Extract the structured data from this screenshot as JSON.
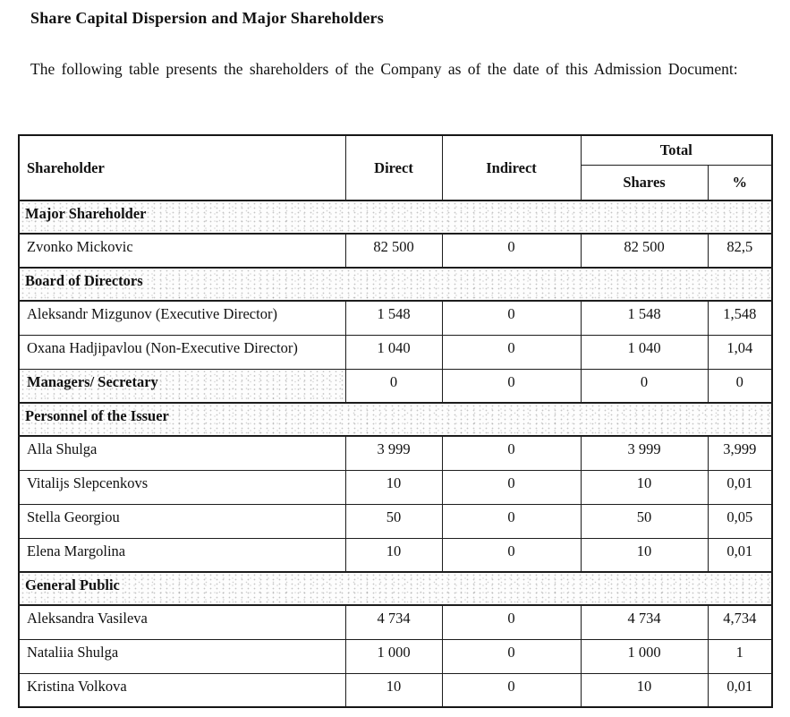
{
  "page": {
    "title": "Share Capital Dispersion and Major Shareholders",
    "intro": "The following table presents the shareholders of the Company as of the date of this Admission Document:"
  },
  "table": {
    "headers": {
      "shareholder": "Shareholder",
      "direct": "Direct",
      "indirect": "Indirect",
      "total": "Total",
      "shares": "Shares",
      "percent": "%"
    },
    "rows": [
      {
        "type": "section",
        "label": "Major Shareholder"
      },
      {
        "type": "data",
        "name": "Zvonko Mickovic",
        "direct": "82 500",
        "indirect": "0",
        "shares": "82 500",
        "percent": "82,5"
      },
      {
        "type": "section",
        "label": "Board of Directors"
      },
      {
        "type": "data",
        "name": "Aleksandr Mizgunov (Executive Director)",
        "direct": "1 548",
        "indirect": "0",
        "shares": "1 548",
        "percent": "1,548"
      },
      {
        "type": "data",
        "name": "Oxana Hadjipavlou (Non-Executive Director)",
        "direct": "1 040",
        "indirect": "0",
        "shares": "1 040",
        "percent": "1,04"
      },
      {
        "type": "data",
        "name": "Managers/ Secretary",
        "bold": true,
        "speckled": true,
        "direct": "0",
        "indirect": "0",
        "shares": "0",
        "percent": "0"
      },
      {
        "type": "section",
        "label": "Personnel of the Issuer"
      },
      {
        "type": "data",
        "name": "Alla Shulga",
        "direct": "3 999",
        "indirect": "0",
        "shares": "3 999",
        "percent": "3,999"
      },
      {
        "type": "data",
        "name": "Vitalijs Slepcenkovs",
        "direct": "10",
        "indirect": "0",
        "shares": "10",
        "percent": "0,01"
      },
      {
        "type": "data",
        "name": "Stella Georgiou",
        "direct": "50",
        "indirect": "0",
        "shares": "50",
        "percent": "0,05"
      },
      {
        "type": "data",
        "name": "Elena Margolina",
        "direct": "10",
        "indirect": "0",
        "shares": "10",
        "percent": "0,01"
      },
      {
        "type": "section",
        "label": "General Public"
      },
      {
        "type": "data",
        "name": "Aleksandra Vasileva",
        "direct": "4 734",
        "indirect": "0",
        "shares": "4 734",
        "percent": "4,734"
      },
      {
        "type": "data",
        "name": "Nataliia Shulga",
        "direct": "1 000",
        "indirect": "0",
        "shares": "1 000",
        "percent": "1"
      },
      {
        "type": "data",
        "name": "Kristina Volkova",
        "direct": "10",
        "indirect": "0",
        "shares": "10",
        "percent": "0,01"
      }
    ]
  }
}
